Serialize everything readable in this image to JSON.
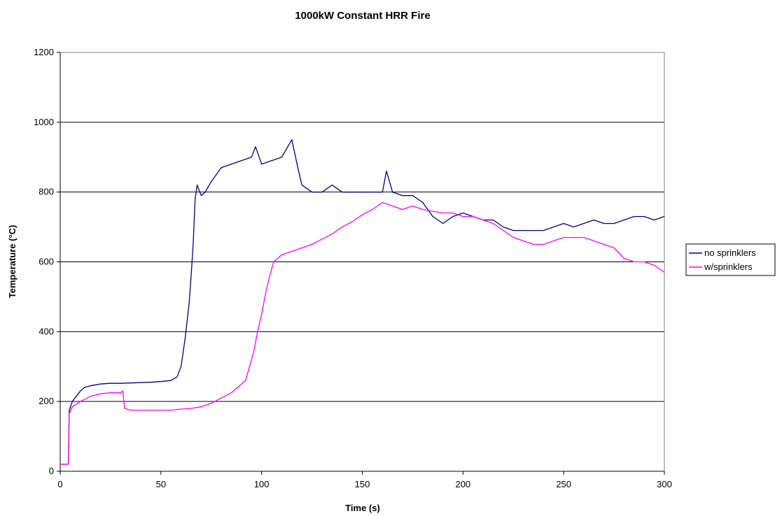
{
  "chart_data": {
    "type": "line",
    "title": "1000kW Constant HRR Fire",
    "xlabel": "Time (s)",
    "ylabel": "Temperature (°C)",
    "xlim": [
      0,
      300
    ],
    "ylim": [
      0,
      1200
    ],
    "xticks": [
      0,
      50,
      100,
      150,
      200,
      250,
      300
    ],
    "yticks": [
      0,
      200,
      400,
      600,
      800,
      1000,
      1200
    ],
    "grid": "horizontal major gridlines",
    "legend_position": "right",
    "series": [
      {
        "name": "no sprinklers",
        "color": "#000080",
        "points": [
          [
            0,
            20
          ],
          [
            4,
            20
          ],
          [
            4.5,
            175
          ],
          [
            6,
            200
          ],
          [
            8,
            215
          ],
          [
            10,
            230
          ],
          [
            12,
            240
          ],
          [
            15,
            245
          ],
          [
            20,
            250
          ],
          [
            25,
            252
          ],
          [
            30,
            252
          ],
          [
            35,
            253
          ],
          [
            40,
            254
          ],
          [
            45,
            255
          ],
          [
            50,
            257
          ],
          [
            55,
            260
          ],
          [
            58,
            270
          ],
          [
            60,
            300
          ],
          [
            62,
            380
          ],
          [
            64,
            480
          ],
          [
            65,
            560
          ],
          [
            66,
            650
          ],
          [
            67,
            780
          ],
          [
            68,
            820
          ],
          [
            70,
            790
          ],
          [
            72,
            800
          ],
          [
            75,
            830
          ],
          [
            80,
            870
          ],
          [
            85,
            880
          ],
          [
            90,
            890
          ],
          [
            95,
            900
          ],
          [
            97,
            930
          ],
          [
            100,
            880
          ],
          [
            105,
            890
          ],
          [
            110,
            900
          ],
          [
            112,
            920
          ],
          [
            115,
            950
          ],
          [
            118,
            870
          ],
          [
            120,
            820
          ],
          [
            125,
            800
          ],
          [
            130,
            800
          ],
          [
            135,
            820
          ],
          [
            140,
            800
          ],
          [
            145,
            800
          ],
          [
            150,
            800
          ],
          [
            155,
            800
          ],
          [
            160,
            800
          ],
          [
            162,
            860
          ],
          [
            165,
            800
          ],
          [
            170,
            790
          ],
          [
            175,
            790
          ],
          [
            180,
            770
          ],
          [
            185,
            730
          ],
          [
            190,
            710
          ],
          [
            195,
            730
          ],
          [
            200,
            740
          ],
          [
            205,
            730
          ],
          [
            210,
            720
          ],
          [
            215,
            720
          ],
          [
            220,
            700
          ],
          [
            225,
            690
          ],
          [
            230,
            690
          ],
          [
            235,
            690
          ],
          [
            240,
            690
          ],
          [
            245,
            700
          ],
          [
            250,
            710
          ],
          [
            255,
            700
          ],
          [
            260,
            710
          ],
          [
            265,
            720
          ],
          [
            270,
            710
          ],
          [
            275,
            710
          ],
          [
            280,
            720
          ],
          [
            285,
            730
          ],
          [
            290,
            730
          ],
          [
            295,
            720
          ],
          [
            300,
            730
          ]
        ]
      },
      {
        "name": "w/sprinklers",
        "color": "#FF00FF",
        "points": [
          [
            0,
            20
          ],
          [
            4,
            20
          ],
          [
            4.5,
            165
          ],
          [
            6,
            185
          ],
          [
            10,
            200
          ],
          [
            15,
            215
          ],
          [
            20,
            222
          ],
          [
            25,
            225
          ],
          [
            30,
            225
          ],
          [
            31,
            230
          ],
          [
            32,
            180
          ],
          [
            35,
            175
          ],
          [
            40,
            175
          ],
          [
            45,
            175
          ],
          [
            50,
            175
          ],
          [
            55,
            175
          ],
          [
            60,
            178
          ],
          [
            65,
            180
          ],
          [
            70,
            185
          ],
          [
            75,
            195
          ],
          [
            80,
            210
          ],
          [
            85,
            225
          ],
          [
            88,
            240
          ],
          [
            90,
            250
          ],
          [
            92,
            260
          ],
          [
            94,
            300
          ],
          [
            96,
            340
          ],
          [
            98,
            400
          ],
          [
            100,
            450
          ],
          [
            102,
            510
          ],
          [
            104,
            560
          ],
          [
            106,
            600
          ],
          [
            110,
            620
          ],
          [
            115,
            630
          ],
          [
            120,
            640
          ],
          [
            125,
            650
          ],
          [
            130,
            665
          ],
          [
            135,
            680
          ],
          [
            140,
            700
          ],
          [
            145,
            715
          ],
          [
            150,
            735
          ],
          [
            155,
            750
          ],
          [
            160,
            770
          ],
          [
            165,
            760
          ],
          [
            170,
            750
          ],
          [
            175,
            760
          ],
          [
            180,
            750
          ],
          [
            185,
            745
          ],
          [
            190,
            740
          ],
          [
            195,
            740
          ],
          [
            200,
            730
          ],
          [
            205,
            730
          ],
          [
            210,
            720
          ],
          [
            215,
            710
          ],
          [
            220,
            690
          ],
          [
            225,
            670
          ],
          [
            230,
            660
          ],
          [
            235,
            650
          ],
          [
            240,
            650
          ],
          [
            245,
            660
          ],
          [
            250,
            670
          ],
          [
            255,
            670
          ],
          [
            260,
            670
          ],
          [
            265,
            660
          ],
          [
            270,
            650
          ],
          [
            275,
            640
          ],
          [
            280,
            610
          ],
          [
            285,
            600
          ],
          [
            290,
            600
          ],
          [
            295,
            590
          ],
          [
            300,
            570
          ]
        ]
      }
    ]
  }
}
